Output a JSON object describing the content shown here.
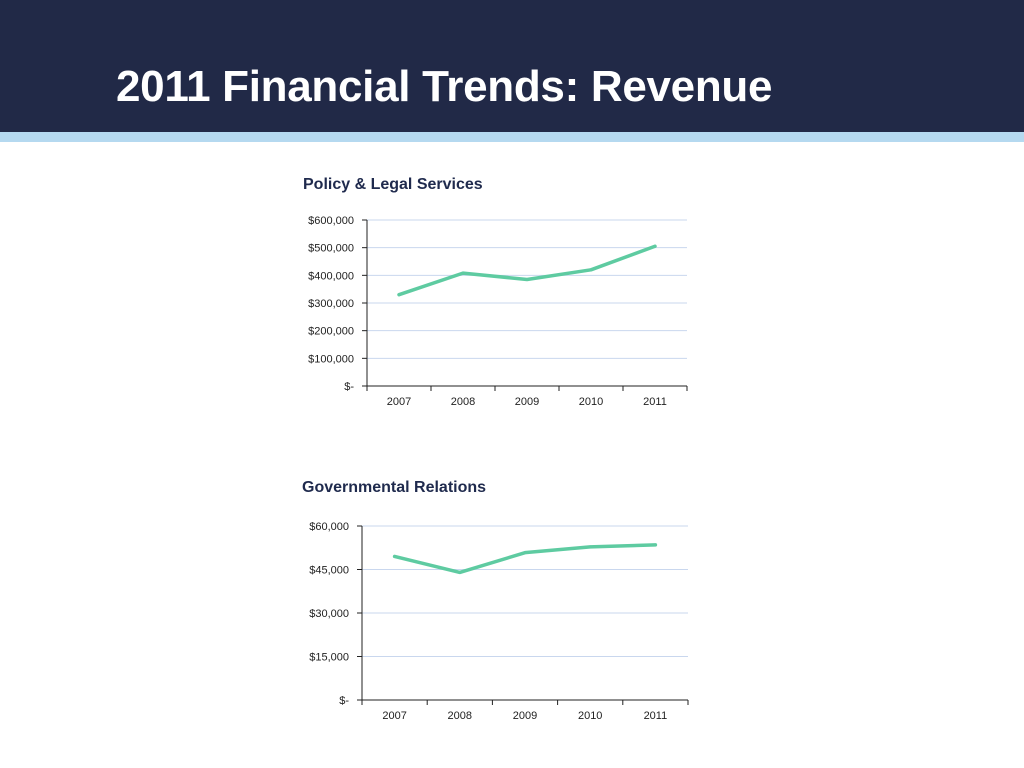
{
  "slide": {
    "title": "2011 Financial Trends: Revenue"
  },
  "colors": {
    "header_bg": "#212947",
    "header_stripe": "#b5d9f0",
    "line": "#5ecba1",
    "gridline": "#c9d7ee"
  },
  "chart_data": [
    {
      "type": "line",
      "title": "Policy & Legal Services",
      "xlabel": "",
      "ylabel": "",
      "categories": [
        "2007",
        "2008",
        "2009",
        "2010",
        "2011"
      ],
      "values": [
        330000,
        408000,
        385000,
        420000,
        505000
      ],
      "ylim": [
        0,
        600000
      ],
      "yticks": [
        0,
        100000,
        200000,
        300000,
        400000,
        500000,
        600000
      ],
      "ytick_labels": [
        "$-",
        "$100,000",
        "$200,000",
        "$300,000",
        "$400,000",
        "$500,000",
        "$600,000"
      ],
      "grid": true,
      "legend": "none"
    },
    {
      "type": "line",
      "title": "Governmental Relations",
      "xlabel": "",
      "ylabel": "",
      "categories": [
        "2007",
        "2008",
        "2009",
        "2010",
        "2011"
      ],
      "values": [
        49500,
        44000,
        50800,
        52800,
        53500
      ],
      "ylim": [
        0,
        60000
      ],
      "yticks": [
        0,
        15000,
        30000,
        45000,
        60000
      ],
      "ytick_labels": [
        "$-",
        "$15,000",
        "$30,000",
        "$45,000",
        "$60,000"
      ],
      "grid": true,
      "legend": "none"
    }
  ]
}
